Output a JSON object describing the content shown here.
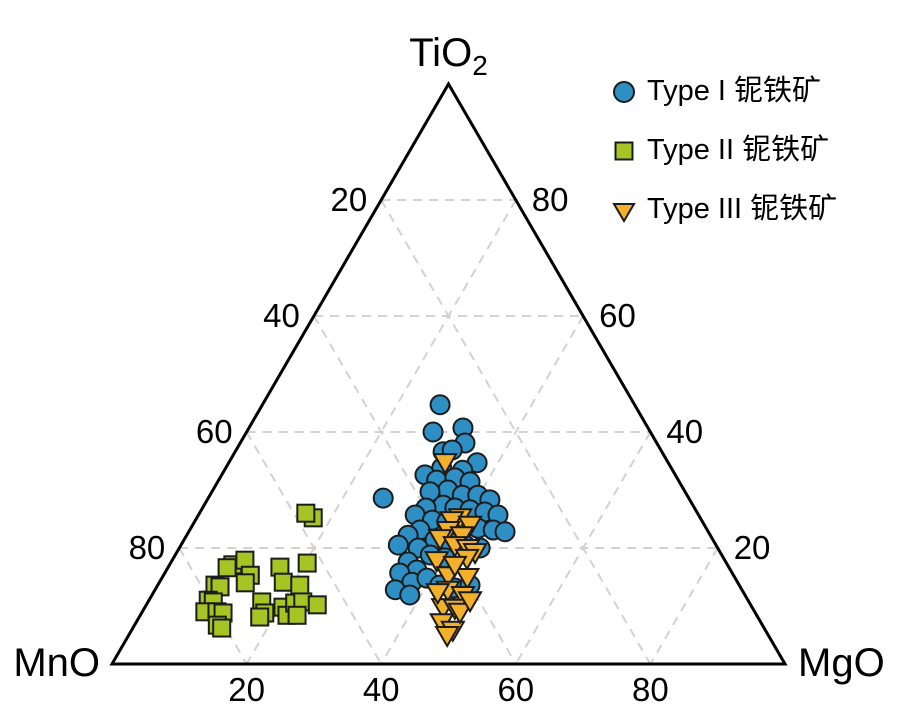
{
  "figure": {
    "background": "#ffffff",
    "outline_color": "#000000",
    "marker_edge_color": "#1c1c1c"
  },
  "chart_data": {
    "type": "scatter",
    "subtype": "ternary",
    "title": "",
    "axes": {
      "top": {
        "label": "TiO",
        "subscript": "2"
      },
      "left": {
        "label": "MnO"
      },
      "right": {
        "label": "MgO"
      }
    },
    "ticks": {
      "left_edge": [
        20,
        40,
        60,
        80
      ],
      "right_edge": [
        80,
        60,
        40,
        20
      ],
      "bottom_edge": [
        20,
        40,
        60,
        80
      ]
    },
    "grid": {
      "show": true,
      "values": [
        20,
        40,
        60,
        80
      ],
      "color": "#d2d2d2",
      "dash": "9 7"
    },
    "legend_position": "top-right",
    "series": [
      {
        "name": "Type I 铌铁矿",
        "marker": "circle",
        "color": "#2E8FC4",
        "points_tio2_mno_mgo": [
          [
            44.7,
            28.9,
            26.4
          ],
          [
            40.0,
            32.3,
            27.7
          ],
          [
            40.7,
            27.5,
            31.8
          ],
          [
            38.1,
            28.5,
            33.4
          ],
          [
            36.6,
            32.5,
            30.9
          ],
          [
            36.9,
            31.0,
            32.1
          ],
          [
            34.7,
            28.4,
            36.9
          ],
          [
            33.4,
            31.2,
            35.4
          ],
          [
            33.8,
            34.1,
            32.1
          ],
          [
            32.6,
            37.2,
            30.2
          ],
          [
            31.7,
            35.9,
            32.4
          ],
          [
            32.1,
            33.0,
            34.9
          ],
          [
            31.4,
            31.1,
            37.5
          ],
          [
            30.0,
            35.1,
            34.9
          ],
          [
            29.7,
            37.9,
            32.4
          ],
          [
            29.1,
            33.4,
            37.5
          ],
          [
            29.1,
            31.1,
            39.8
          ],
          [
            28.3,
            29.7,
            42.0
          ],
          [
            27.4,
            37.1,
            35.5
          ],
          [
            26.9,
            39.9,
            33.2
          ],
          [
            26.9,
            35.6,
            37.5
          ],
          [
            26.6,
            33.5,
            39.9
          ],
          [
            26.2,
            31.5,
            42.3
          ],
          [
            25.7,
            29.8,
            44.5
          ],
          [
            25.7,
            42.1,
            32.2
          ],
          [
            24.8,
            40.0,
            35.2
          ],
          [
            24.5,
            38.0,
            37.5
          ],
          [
            24.0,
            36.0,
            40.0
          ],
          [
            23.4,
            33.9,
            42.7
          ],
          [
            23.1,
            31.8,
            45.1
          ],
          [
            22.8,
            30.2,
            47.0
          ],
          [
            23.1,
            42.7,
            34.2
          ],
          [
            22.2,
            44.9,
            32.9
          ],
          [
            21.4,
            41.3,
            37.3
          ],
          [
            21.0,
            39.3,
            39.7
          ],
          [
            20.5,
            37.3,
            42.2
          ],
          [
            20.0,
            35.3,
            44.7
          ],
          [
            20.0,
            44.5,
            35.5
          ],
          [
            18.8,
            43.3,
            37.9
          ],
          [
            18.3,
            41.4,
            40.3
          ],
          [
            17.6,
            47.2,
            35.2
          ],
          [
            16.2,
            46.6,
            37.2
          ],
          [
            15.7,
            49.4,
            34.9
          ],
          [
            14.1,
            48.4,
            37.5
          ],
          [
            14.8,
            45.8,
            39.4
          ],
          [
            13.6,
            44.5,
            41.9
          ],
          [
            13.1,
            42.5,
            44.4
          ],
          [
            13.6,
            40.0,
            46.4
          ],
          [
            28.6,
            45.4,
            26.0
          ],
          [
            20.5,
            47.2,
            32.3
          ],
          [
            12.8,
            51.5,
            35.7
          ],
          [
            11.9,
            49.8,
            38.3
          ]
        ]
      },
      {
        "name": "Type II 铌铁矿",
        "marker": "square",
        "color": "#A6C424",
        "points_tio2_mno_mgo": [
          [
            25.2,
            57.5,
            17.3
          ],
          [
            26.0,
            58.2,
            15.8
          ],
          [
            17.1,
            73.5,
            9.4
          ],
          [
            17.9,
            71.3,
            10.8
          ],
          [
            16.6,
            74.6,
            8.8
          ],
          [
            15.3,
            71.8,
            12.9
          ],
          [
            14.0,
            73.2,
            12.8
          ],
          [
            16.7,
            66.7,
            16.6
          ],
          [
            14.1,
            67.5,
            18.4
          ],
          [
            17.4,
            62.3,
            20.3
          ],
          [
            13.6,
            65.3,
            21.1
          ],
          [
            13.6,
            77.9,
            8.5
          ],
          [
            13.3,
            77.3,
            9.4
          ],
          [
            11.0,
            80.2,
            8.8
          ],
          [
            10.7,
            79.6,
            9.7
          ],
          [
            9.0,
            81.7,
            9.3
          ],
          [
            9.0,
            79.9,
            11.1
          ],
          [
            8.8,
            79.1,
            12.1
          ],
          [
            6.7,
            81.0,
            12.3
          ],
          [
            10.7,
            72.4,
            16.9
          ],
          [
            8.8,
            72.9,
            18.3
          ],
          [
            8.1,
            74.0,
            17.9
          ],
          [
            9.8,
            69.7,
            20.5
          ],
          [
            8.4,
            69.8,
            21.8
          ],
          [
            10.5,
            67.6,
            21.9
          ],
          [
            10.7,
            66.3,
            23.0
          ],
          [
            10.2,
            64.4,
            25.4
          ],
          [
            8.4,
            68.3,
            23.3
          ],
          [
            6.2,
            80.6,
            13.2
          ]
        ]
      },
      {
        "name": "Type III 铌铁矿",
        "marker": "triangle-down",
        "color": "#F2B02B",
        "points_tio2_mno_mgo": [
          [
            34.8,
            33.1,
            32.1
          ],
          [
            25.3,
            35.6,
            39.1
          ],
          [
            24.8,
            37.1,
            38.1
          ],
          [
            24.0,
            34.8,
            41.2
          ],
          [
            23.1,
            38.5,
            38.4
          ],
          [
            22.2,
            36.9,
            40.9
          ],
          [
            21.7,
            40.4,
            37.9
          ],
          [
            20.5,
            38.8,
            40.7
          ],
          [
            20.0,
            37.1,
            42.9
          ],
          [
            19.3,
            36.4,
            44.3
          ],
          [
            17.9,
            42.8,
            39.3
          ],
          [
            18.3,
            38.1,
            43.6
          ],
          [
            15.3,
            42.4,
            42.3
          ],
          [
            15.0,
            39.7,
            45.3
          ],
          [
            17.1,
            40.5,
            42.4
          ],
          [
            12.8,
            43.7,
            43.5
          ],
          [
            11.9,
            41.9,
            46.2
          ],
          [
            9.8,
            45.9,
            44.3
          ],
          [
            9.7,
            44.2,
            46.1
          ],
          [
            7.2,
            47.4,
            45.4
          ],
          [
            5.9,
            46.4,
            47.7
          ],
          [
            5.0,
            47.7,
            47.3
          ],
          [
            9.0,
            43.8,
            47.2
          ],
          [
            11.0,
            41.3,
            47.7
          ],
          [
            12.4,
            45.4,
            42.2
          ]
        ]
      }
    ]
  }
}
